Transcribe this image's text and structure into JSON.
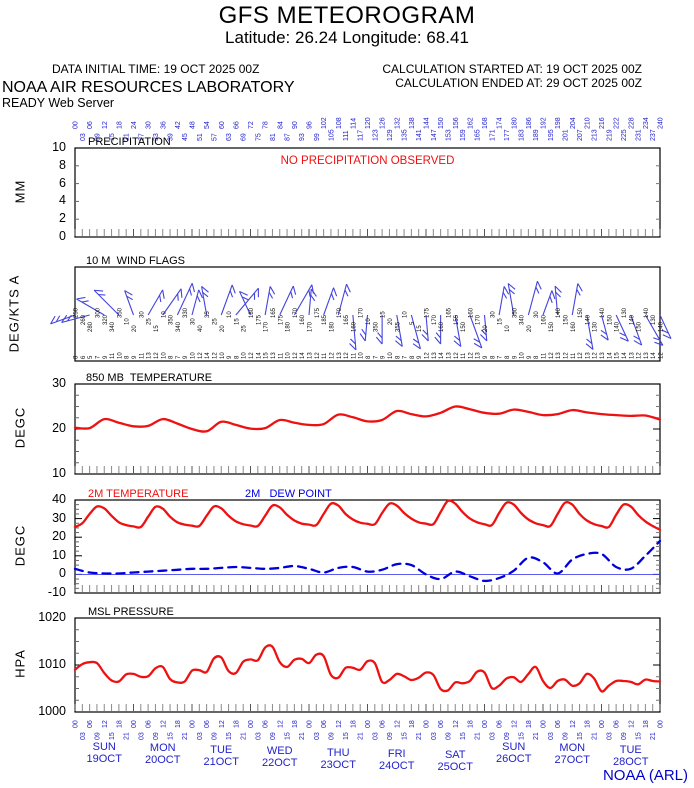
{
  "page": {
    "title": "GFS METEOROGRAM",
    "subtitle": "Latitude: 26.24 Longitude:  68.41"
  },
  "info": {
    "data_initial": "DATA INITIAL TIME: 19 OCT 2025 00Z",
    "calc_started": "CALCULATION STARTED AT: 19 OCT 2025 00Z",
    "calc_ended": "CALCULATION ENDED AT: 29 OCT 2025 00Z",
    "org": "NOAA AIR RESOURCES LABORATORY",
    "server": "READY Web Server"
  },
  "credit": "NOAA (ARL)",
  "colors": {
    "blue_text": "#2222cc",
    "line_red": "#ee1111",
    "line_blue": "#0000dd",
    "barb_blue": "#4444dd",
    "comb": "#888888",
    "credit_blue": "#0000cc"
  },
  "axis": {
    "forecast_hours": {
      "start": 0,
      "step": 3,
      "count": 81
    },
    "day_hours_cycle": [
      "00",
      "03",
      "06",
      "09",
      "12",
      "15",
      "18",
      "21"
    ],
    "dates": [
      {
        "day": "SUN",
        "date": "19OCT"
      },
      {
        "day": "MON",
        "date": "20OCT"
      },
      {
        "day": "TUE",
        "date": "21OCT"
      },
      {
        "day": "WED",
        "date": "22OCT"
      },
      {
        "day": "THU",
        "date": "23OCT"
      },
      {
        "day": "FRI",
        "date": "24OCT"
      },
      {
        "day": "SAT",
        "date": "25OCT"
      },
      {
        "day": "SUN",
        "date": "26OCT"
      },
      {
        "day": "MON",
        "date": "27OCT"
      },
      {
        "day": "TUE",
        "date": "28OCT"
      }
    ]
  },
  "panels": {
    "precip": {
      "title": "PRECIPITATION",
      "unit": "MM",
      "yticks": [
        0,
        2,
        4,
        6,
        8,
        10
      ],
      "ylim": [
        0,
        10
      ],
      "note": "NO PRECIPITATION OBSERVED"
    },
    "wind": {
      "title": "10 M  WIND FLAGS",
      "unit": "DEG/KTS  A"
    },
    "t850": {
      "title": "850 MB  TEMPERATURE",
      "unit": "DEGC",
      "yticks": [
        10,
        20,
        30
      ],
      "ylim": [
        10,
        30
      ]
    },
    "t2m": {
      "title_red": "2M TEMPERATURE",
      "title_blue": "2M   DEW POINT",
      "unit": "DEGC",
      "yticks": [
        -10,
        0,
        10,
        20,
        30,
        40
      ],
      "ylim": [
        -10,
        40
      ],
      "zero_line": 0
    },
    "mslp": {
      "title": "MSL PRESSURE",
      "unit": "HPA",
      "yticks": [
        1000,
        1010,
        1020
      ],
      "ylim": [
        1000,
        1020
      ]
    }
  },
  "chart_data": [
    {
      "type": "line",
      "name": "PRECIPITATION",
      "panel": "precip",
      "ylabel": "MM",
      "ylim": [
        0,
        10
      ],
      "note": "NO PRECIPITATION OBSERVED",
      "values": []
    },
    {
      "type": "wind_barbs",
      "name": "10 M WIND FLAGS",
      "panel": "wind",
      "ylabel": "DEG/KTS A",
      "barb_angles_deg": [
        250,
        255,
        300,
        315,
        340,
        30,
        35,
        25,
        15,
        350,
        20,
        40,
        335,
        10,
        25,
        30,
        5,
        20,
        15,
        175,
        185,
        180,
        170,
        165,
        175,
        180,
        170,
        160,
        175,
        10,
        350,
        15,
        20,
        355,
        10,
        170,
        165,
        155,
        160,
        150,
        155
      ],
      "dir_labels": [
        250,
        260,
        280,
        300,
        320,
        340,
        350,
        10,
        20,
        30,
        25,
        15,
        10,
        350,
        340,
        330,
        30,
        40,
        35,
        25,
        20,
        10,
        15,
        25,
        180,
        175,
        170,
        165,
        175,
        180,
        170,
        160,
        170,
        175,
        185,
        180,
        170,
        165,
        160,
        170,
        10,
        350,
        15,
        20,
        355,
        10,
        5,
        15,
        175,
        170,
        160,
        165,
        155,
        150,
        160,
        170,
        20,
        30,
        15,
        10,
        350,
        340,
        20,
        30,
        160,
        150,
        140,
        150,
        160,
        150,
        140,
        130,
        140,
        150,
        140,
        130,
        140,
        150,
        140,
        130,
        140
      ],
      "speed_labels": [
        8,
        6,
        5,
        7,
        9,
        11,
        10,
        8,
        9,
        11,
        13,
        12,
        10,
        8,
        7,
        9,
        10,
        12,
        14,
        12,
        10,
        9,
        8,
        10,
        12,
        14,
        15,
        13,
        11,
        10,
        12,
        14,
        13,
        12,
        11,
        12,
        13,
        12,
        11,
        10,
        8,
        7,
        9,
        10,
        8,
        7,
        8,
        9,
        12,
        13,
        14,
        13,
        12,
        11,
        12,
        13,
        9,
        8,
        7,
        8,
        9,
        10,
        9,
        8,
        11,
        12,
        13,
        12,
        11,
        12,
        13,
        12,
        13,
        14,
        15,
        14,
        13,
        12,
        13,
        14,
        12
      ]
    },
    {
      "type": "line",
      "name": "850 MB TEMPERATURE",
      "panel": "t850",
      "ylabel": "DEGC",
      "ylim": [
        10,
        30
      ],
      "x_step_hours": 6,
      "color": "red",
      "style": "solid",
      "values": [
        20.3,
        20.2,
        22.2,
        21.4,
        20.6,
        20.7,
        22.2,
        21.2,
        20.0,
        19.5,
        21.6,
        20.9,
        20.1,
        20.2,
        22.0,
        21.4,
        20.9,
        21.1,
        23.2,
        22.6,
        21.7,
        22.0,
        24.0,
        23.3,
        22.8,
        23.6,
        25.0,
        24.4,
        23.6,
        23.4,
        24.3,
        23.8,
        23.1,
        23.3,
        24.2,
        23.7,
        23.3,
        23.1,
        22.9,
        23.0,
        22.1
      ]
    },
    {
      "type": "line",
      "name": "2M TEMPERATURE",
      "panel": "t2m",
      "ylabel": "DEGC",
      "ylim": [
        -10,
        40
      ],
      "x_step_hours": 3,
      "color": "red",
      "style": "solid",
      "values": [
        25.5,
        27.5,
        32.5,
        36.5,
        35.5,
        31.5,
        28,
        26.5,
        25.8,
        25.5,
        31,
        36.3,
        35.3,
        31,
        28,
        26.8,
        26.2,
        26,
        31.5,
        36.5,
        35.5,
        31.5,
        28.5,
        27,
        26.3,
        26,
        31.5,
        37,
        36,
        32,
        29,
        27.3,
        26.8,
        26.5,
        32.5,
        38,
        37,
        32.5,
        29.5,
        27.8,
        27.2,
        27,
        33,
        38,
        37,
        33,
        30,
        28,
        27.3,
        27,
        33.5,
        39.5,
        38,
        33.5,
        30,
        28,
        27,
        26.5,
        33,
        38.5,
        37.5,
        33,
        29.5,
        27.5,
        26.5,
        26,
        32.5,
        38.5,
        37.5,
        32.5,
        29,
        27,
        26,
        25.5,
        32,
        37.5,
        36.5,
        32,
        28.5,
        26,
        24
      ]
    },
    {
      "type": "line",
      "name": "2M DEW POINT",
      "panel": "t2m",
      "ylabel": "DEGC",
      "ylim": [
        -10,
        40
      ],
      "x_step_hours": 6,
      "color": "blue",
      "style": "dashed",
      "values": [
        3,
        1,
        0.5,
        0.5,
        1,
        1.5,
        2,
        2.5,
        3,
        3,
        3.5,
        4,
        3.5,
        3,
        3.5,
        4.5,
        3,
        1,
        3.5,
        4,
        1.5,
        2.5,
        5.5,
        5,
        0,
        -2.5,
        1.5,
        -1,
        -3.5,
        -2,
        2,
        9,
        6.5,
        0.5,
        8,
        11,
        11,
        4,
        3,
        10,
        18
      ]
    },
    {
      "type": "line",
      "name": "MSL PRESSURE",
      "panel": "mslp",
      "ylabel": "HPA",
      "ylim": [
        1000,
        1020
      ],
      "x_step_hours": 3,
      "color": "red",
      "style": "solid",
      "values": [
        1009.0,
        1010.2,
        1010.6,
        1010.4,
        1008.3,
        1006.7,
        1006.5,
        1008.0,
        1008.1,
        1007.5,
        1007.6,
        1009.3,
        1009.6,
        1007.0,
        1006.3,
        1006.5,
        1008.8,
        1008.9,
        1008.5,
        1011.4,
        1011.6,
        1008.7,
        1008.3,
        1010.7,
        1011.2,
        1011.0,
        1013.7,
        1013.9,
        1010.6,
        1009.6,
        1011.1,
        1011.3,
        1010.4,
        1012.2,
        1011.9,
        1007.9,
        1007.3,
        1009.4,
        1009.4,
        1009.0,
        1010.8,
        1010.4,
        1006.4,
        1006.8,
        1008.1,
        1007.6,
        1006.8,
        1007.3,
        1008.4,
        1007.9,
        1004.9,
        1004.6,
        1006.3,
        1006.1,
        1006.6,
        1008.6,
        1008.4,
        1005.1,
        1005.6,
        1007.1,
        1007.4,
        1006.4,
        1008.1,
        1009.6,
        1006.6,
        1005.1,
        1006.6,
        1006.9,
        1005.6,
        1006.1,
        1008.1,
        1007.1,
        1004.4,
        1005.6,
        1006.6,
        1006.6,
        1006.4,
        1005.9,
        1006.9,
        1006.6,
        1006.5
      ]
    }
  ]
}
